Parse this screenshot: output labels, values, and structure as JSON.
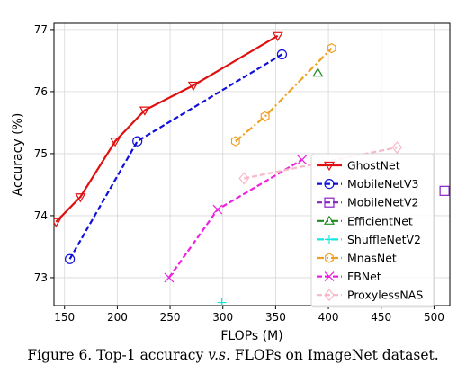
{
  "chart_data": {
    "type": "line",
    "xlabel": "FLOPs (M)",
    "ylabel": "Accuracy (%)",
    "xlim": [
      140,
      515
    ],
    "ylim": [
      72.55,
      77.1
    ],
    "xticks": [
      150,
      200,
      250,
      300,
      350,
      400,
      450,
      500
    ],
    "yticks": [
      73,
      74,
      75,
      76,
      77
    ],
    "grid": true,
    "legend_placement": "right",
    "series": [
      {
        "name": "GhostNet",
        "color": "#e01010",
        "linestyle": "solid",
        "marker": "triangle-down",
        "x": [
          142,
          165,
          198,
          226,
          272,
          352
        ],
        "y": [
          73.9,
          74.3,
          75.2,
          75.7,
          76.1,
          76.9
        ]
      },
      {
        "name": "MobileNetV3",
        "color": "#1010d8",
        "linestyle": "dashed",
        "marker": "circle",
        "x": [
          155,
          219,
          356
        ],
        "y": [
          73.3,
          75.2,
          76.6
        ]
      },
      {
        "name": "MobileNetV2",
        "color": "#8a20c8",
        "linestyle": "dashed",
        "marker": "square",
        "x": [
          510
        ],
        "y": [
          74.4
        ]
      },
      {
        "name": "EfficientNet",
        "color": "#208a20",
        "linestyle": "dashdot",
        "marker": "triangle-up",
        "x": [
          390
        ],
        "y": [
          76.3
        ]
      },
      {
        "name": "ShuffleNetV2",
        "color": "#10e8e8",
        "linestyle": "dashdot",
        "marker": "plus",
        "x": [
          299
        ],
        "y": [
          72.6
        ]
      },
      {
        "name": "MnasNet",
        "color": "#f0a020",
        "linestyle": "dashdot",
        "marker": "hexagon",
        "x": [
          312,
          340,
          403
        ],
        "y": [
          75.2,
          75.6,
          76.7
        ]
      },
      {
        "name": "FBNet",
        "color": "#f020e0",
        "linestyle": "dashed",
        "marker": "x",
        "x": [
          249,
          295,
          375
        ],
        "y": [
          73.0,
          74.1,
          74.9
        ]
      },
      {
        "name": "ProxylessNAS",
        "color": "#f8b8c8",
        "linestyle": "dashed",
        "marker": "diamond",
        "x": [
          320,
          465
        ],
        "y": [
          74.6,
          75.1
        ]
      }
    ]
  },
  "caption": {
    "prefix": "Figure 6. Top-1 accuracy ",
    "vs": "v.s.",
    "suffix": " FLOPs on ImageNet dataset."
  }
}
